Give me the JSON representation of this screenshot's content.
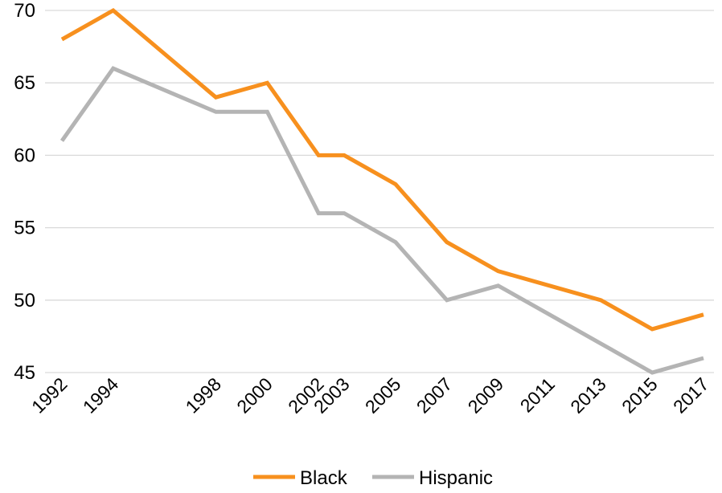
{
  "chart_data": {
    "type": "line",
    "title": "",
    "xlabel": "",
    "ylabel": "",
    "x": [
      1992,
      1994,
      1998,
      2000,
      2002,
      2003,
      2005,
      2007,
      2009,
      2011,
      2013,
      2015,
      2017
    ],
    "ylim": [
      45,
      70
    ],
    "yticks": [
      45,
      50,
      55,
      60,
      65,
      70
    ],
    "grid": true,
    "legend_position": "bottom",
    "series": [
      {
        "name": "Black",
        "color": "#f7901e",
        "values": [
          68,
          70,
          64,
          65,
          60,
          60,
          58,
          54,
          52,
          51,
          50,
          48,
          49
        ]
      },
      {
        "name": "Hispanic",
        "color": "#b4b4b4",
        "values": [
          61,
          66,
          63,
          63,
          56,
          56,
          54,
          50,
          51,
          49,
          47,
          45,
          46
        ]
      }
    ]
  }
}
